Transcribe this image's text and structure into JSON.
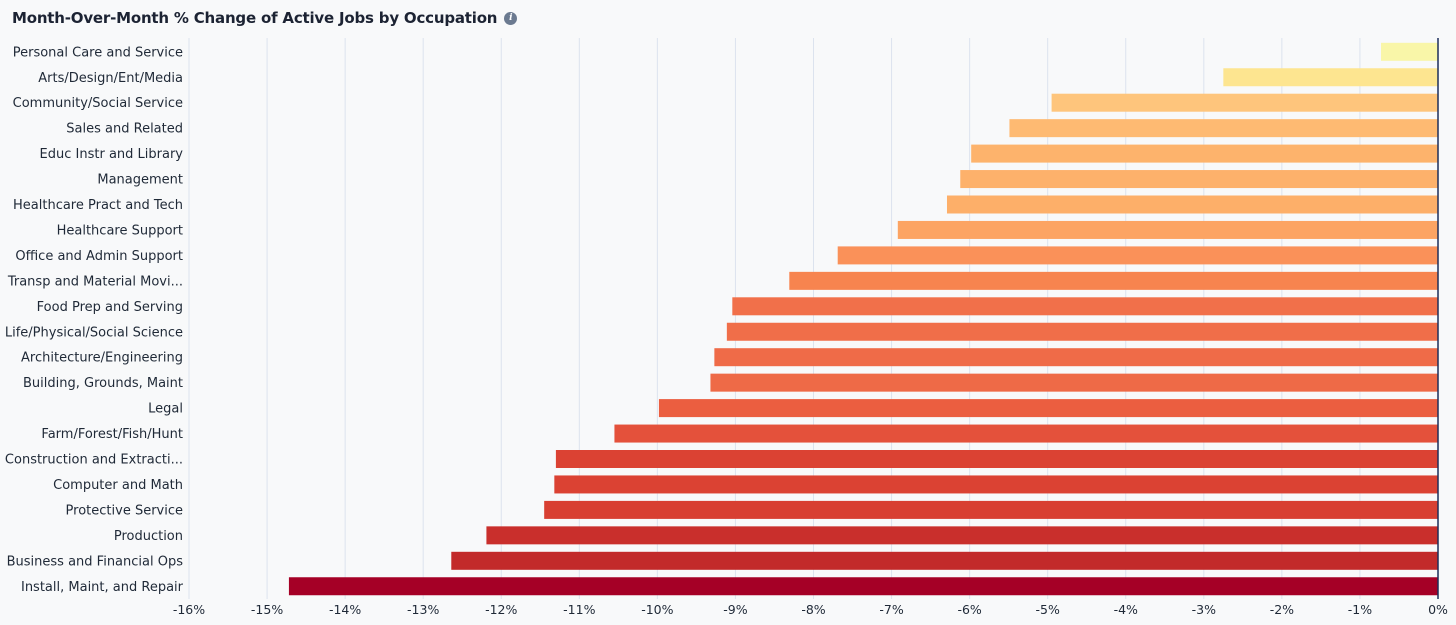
{
  "header": {
    "title": "Month-Over-Month % Change of Active Jobs by Occupation",
    "info_icon": "info-icon"
  },
  "chart_data": {
    "type": "bar",
    "orientation": "horizontal",
    "title": "Month-Over-Month % Change of Active Jobs by Occupation",
    "xlabel": "",
    "ylabel": "",
    "xlim": [
      -16,
      0
    ],
    "grid": true,
    "categories": [
      "Personal Care and Service",
      "Arts/Design/Ent/Media",
      "Community/Social Service",
      "Sales and Related",
      "Educ Instr and Library",
      "Management",
      "Healthcare Pract and Tech",
      "Healthcare Support",
      "Office and Admin Support",
      "Transp and Material Movi...",
      "Food Prep and Serving",
      "Life/Physical/Social Science",
      "Architecture/Engineering",
      "Building, Grounds, Maint",
      "Legal",
      "Farm/Forest/Fish/Hunt",
      "Construction and Extracti...",
      "Computer and Math",
      "Protective Service",
      "Production",
      "Business and Financial Ops",
      "Install, Maint, and Repair"
    ],
    "values": [
      -0.73,
      -2.75,
      -4.95,
      -5.49,
      -5.98,
      -6.12,
      -6.29,
      -6.92,
      -7.69,
      -8.31,
      -9.04,
      -9.11,
      -9.27,
      -9.32,
      -9.98,
      -10.55,
      -11.3,
      -11.32,
      -11.45,
      -12.19,
      -12.64,
      -14.72
    ],
    "colors": [
      "#f9f6a8",
      "#fde590",
      "#fec57c",
      "#feba72",
      "#fdb36c",
      "#fdb16b",
      "#fdaf69",
      "#fca463",
      "#fa9159",
      "#f7844f",
      "#f1704a",
      "#f06e49",
      "#ef6b48",
      "#ee6a47",
      "#eb5e40",
      "#e4513b",
      "#db4233",
      "#db4233",
      "#d83f32",
      "#c92f2c",
      "#c22a2a",
      "#a50026"
    ],
    "x_ticks": [
      "-16%",
      "-15%",
      "-14%",
      "-13%",
      "-12%",
      "-11%",
      "-10%",
      "-9%",
      "-8%",
      "-7%",
      "-6%",
      "-5%",
      "-4%",
      "-3%",
      "-2%",
      "-1%",
      "0%"
    ],
    "x_tick_values": [
      -16,
      -15,
      -14,
      -13,
      -12,
      -11,
      -10,
      -9,
      -8,
      -7,
      -6,
      -5,
      -4,
      -3,
      -2,
      -1,
      0
    ],
    "grid_color": "#dce3ee",
    "baseline_color": "#1c2e5a"
  }
}
